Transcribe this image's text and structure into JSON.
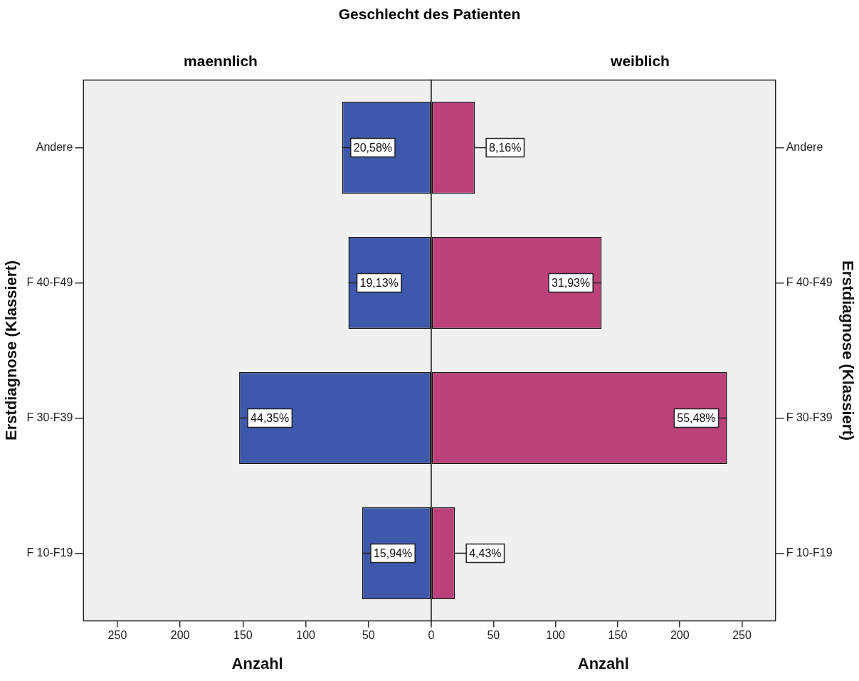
{
  "chart_data": [
    {
      "type": "bar",
      "orientation": "horizontal",
      "title": "Geschlecht des Patienten",
      "subtitle": "maennlich",
      "categories": [
        "Andere",
        "F 40-F49",
        "F 30-F39",
        "F 10-F19"
      ],
      "values": [
        71,
        66,
        153,
        55
      ],
      "color": "#3e58ac",
      "xlim": [
        277,
        0
      ],
      "xticks": [
        250,
        200,
        150,
        100,
        50,
        0
      ],
      "xlabel": "Anzahl",
      "ylabel": "Erstdiagnose (Klassiert)",
      "grid": false,
      "legend": false,
      "annotations": [
        {
          "text": "20,58%",
          "x": 71,
          "y": "Andere"
        },
        {
          "text": "19,13%",
          "x": 66,
          "y": "F 40-F49"
        },
        {
          "text": "44,35%",
          "x": 153,
          "y": "F 30-F39"
        },
        {
          "text": "15,94%",
          "x": 55,
          "y": "F 10-F19"
        }
      ]
    },
    {
      "type": "bar",
      "orientation": "horizontal",
      "subtitle": "weiblich",
      "categories": [
        "Andere",
        "F 40-F49",
        "F 30-F39",
        "F 10-F19"
      ],
      "values": [
        35,
        137,
        238,
        19
      ],
      "color": "#bc417b",
      "xlim": [
        0,
        277
      ],
      "xticks": [
        {
          "value": 0,
          "label": null
        },
        50,
        100,
        150,
        200,
        250
      ],
      "xlabel": "Anzahl",
      "ylabel": "Erstdiagnose (Klassiert)",
      "grid": false,
      "legend": false,
      "annotations": [
        {
          "text": "8,16%",
          "x": 35,
          "y": "Andere"
        },
        {
          "text": "31,93%",
          "x": 137,
          "y": "F 40-F49"
        },
        {
          "text": "55,48%",
          "x": 238,
          "y": "F 30-F39"
        },
        {
          "text": "4,43%",
          "x": 19,
          "y": "F 10-F19"
        }
      ]
    }
  ]
}
